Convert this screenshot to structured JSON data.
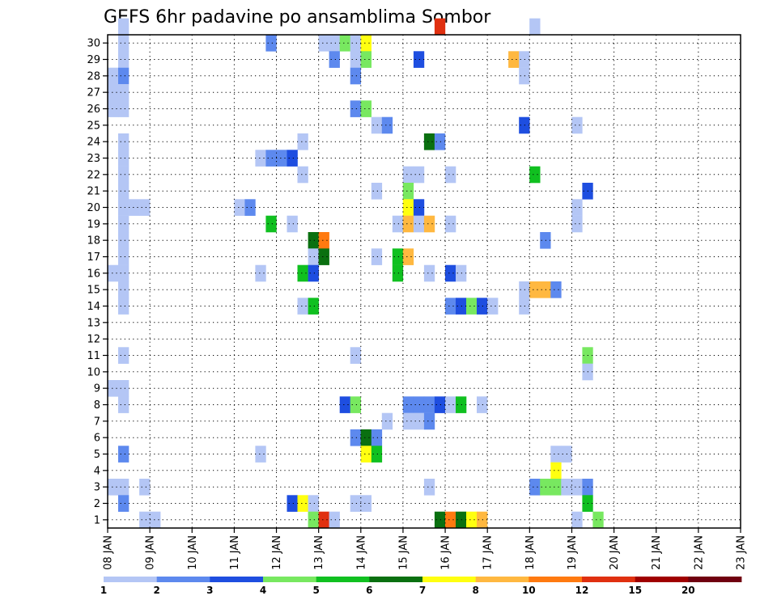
{
  "chart_data": {
    "type": "heatmap",
    "title": "GEFS 6hr padavine po ansamblima Sombor",
    "xlabel": "",
    "ylabel": "",
    "x_ticks": [
      "08 JAN",
      "09 JAN",
      "10 JAN",
      "11 JAN",
      "12 JAN",
      "13 JAN",
      "14 JAN",
      "15 JAN",
      "16 JAN",
      "17 JAN",
      "18 JAN",
      "19 JAN",
      "20 JAN",
      "21 JAN",
      "22 JAN",
      "23 JAN"
    ],
    "y_ticks": [
      "1",
      "2",
      "3",
      "4",
      "5",
      "6",
      "7",
      "8",
      "9",
      "10",
      "11",
      "12",
      "13",
      "14",
      "15",
      "16",
      "17",
      "18",
      "19",
      "20",
      "21",
      "22",
      "23",
      "24",
      "25",
      "26",
      "27",
      "28",
      "29",
      "30"
    ],
    "x_range": [
      0,
      60
    ],
    "y_range": [
      0,
      30
    ],
    "grid": true,
    "colorbar": {
      "labels": [
        "1",
        "2",
        "3",
        "4",
        "5",
        "6",
        "7",
        "8",
        "10",
        "12",
        "15",
        "20"
      ],
      "colors": [
        "#b4c6f5",
        "#5d89ee",
        "#1e4ee0",
        "#78e860",
        "#10c020",
        "#0a7010",
        "#ffff10",
        "#ffb840",
        "#ff7a10",
        "#e03010",
        "#a00000",
        "#700010"
      ]
    },
    "cells": [
      [
        1,
        30,
        1
      ],
      [
        31,
        30,
        10
      ],
      [
        40,
        30,
        1
      ],
      [
        1,
        29,
        1
      ],
      [
        15,
        29,
        2
      ],
      [
        20,
        29,
        1
      ],
      [
        21,
        29,
        1
      ],
      [
        22,
        29,
        4
      ],
      [
        23,
        29,
        1
      ],
      [
        24,
        29,
        7
      ],
      [
        1,
        28,
        1
      ],
      [
        21,
        28,
        2
      ],
      [
        23,
        28,
        1
      ],
      [
        24,
        28,
        4
      ],
      [
        29,
        28,
        3
      ],
      [
        38,
        28,
        8
      ],
      [
        39,
        28,
        1
      ],
      [
        0,
        27,
        1
      ],
      [
        1,
        27,
        2
      ],
      [
        23,
        27,
        2
      ],
      [
        39,
        27,
        1
      ],
      [
        0,
        26,
        1
      ],
      [
        1,
        26,
        1
      ],
      [
        0,
        25,
        1
      ],
      [
        1,
        25,
        1
      ],
      [
        23,
        25,
        2
      ],
      [
        24,
        25,
        4
      ],
      [
        25,
        24,
        1
      ],
      [
        26,
        24,
        2
      ],
      [
        39,
        24,
        3
      ],
      [
        44,
        24,
        1
      ],
      [
        1,
        23,
        1
      ],
      [
        18,
        23,
        1
      ],
      [
        30,
        23,
        6
      ],
      [
        31,
        23,
        2
      ],
      [
        1,
        22,
        1
      ],
      [
        14,
        22,
        1
      ],
      [
        15,
        22,
        2
      ],
      [
        16,
        22,
        2
      ],
      [
        17,
        22,
        3
      ],
      [
        1,
        21,
        1
      ],
      [
        18,
        21,
        1
      ],
      [
        28,
        21,
        1
      ],
      [
        29,
        21,
        1
      ],
      [
        32,
        21,
        1
      ],
      [
        40,
        21,
        5
      ],
      [
        1,
        20,
        1
      ],
      [
        25,
        20,
        1
      ],
      [
        28,
        20,
        4
      ],
      [
        45,
        20,
        3
      ],
      [
        1,
        19,
        1
      ],
      [
        2,
        19,
        1
      ],
      [
        3,
        19,
        1
      ],
      [
        12,
        19,
        1
      ],
      [
        13,
        19,
        2
      ],
      [
        28,
        19,
        7
      ],
      [
        29,
        19,
        3
      ],
      [
        44,
        19,
        1
      ],
      [
        1,
        18,
        1
      ],
      [
        15,
        18,
        5
      ],
      [
        17,
        18,
        1
      ],
      [
        27,
        18,
        1
      ],
      [
        28,
        18,
        8
      ],
      [
        29,
        18,
        1
      ],
      [
        30,
        18,
        8
      ],
      [
        32,
        18,
        1
      ],
      [
        44,
        18,
        1
      ],
      [
        1,
        17,
        1
      ],
      [
        19,
        17,
        6
      ],
      [
        20,
        17,
        9
      ],
      [
        41,
        17,
        2
      ],
      [
        1,
        16,
        1
      ],
      [
        19,
        16,
        1
      ],
      [
        20,
        16,
        6
      ],
      [
        25,
        16,
        1
      ],
      [
        27,
        16,
        5
      ],
      [
        28,
        16,
        8
      ],
      [
        0,
        15,
        1
      ],
      [
        1,
        15,
        1
      ],
      [
        14,
        15,
        1
      ],
      [
        18,
        15,
        5
      ],
      [
        19,
        15,
        3
      ],
      [
        27,
        15,
        5
      ],
      [
        30,
        15,
        1
      ],
      [
        32,
        15,
        3
      ],
      [
        33,
        15,
        1
      ],
      [
        1,
        14,
        1
      ],
      [
        39,
        14,
        1
      ],
      [
        40,
        14,
        8
      ],
      [
        41,
        14,
        8
      ],
      [
        42,
        14,
        2
      ],
      [
        1,
        13,
        1
      ],
      [
        18,
        13,
        1
      ],
      [
        19,
        13,
        5
      ],
      [
        32,
        13,
        2
      ],
      [
        33,
        13,
        3
      ],
      [
        34,
        13,
        4
      ],
      [
        35,
        13,
        3
      ],
      [
        36,
        13,
        1
      ],
      [
        39,
        13,
        1
      ],
      [
        1,
        10,
        1
      ],
      [
        23,
        10,
        1
      ],
      [
        45,
        10,
        4
      ],
      [
        45,
        9,
        1
      ],
      [
        0,
        8,
        1
      ],
      [
        1,
        8,
        1
      ],
      [
        1,
        7,
        1
      ],
      [
        22,
        7,
        3
      ],
      [
        23,
        7,
        4
      ],
      [
        28,
        7,
        2
      ],
      [
        29,
        7,
        2
      ],
      [
        30,
        7,
        2
      ],
      [
        31,
        7,
        3
      ],
      [
        32,
        7,
        1
      ],
      [
        33,
        7,
        5
      ],
      [
        35,
        7,
        1
      ],
      [
        26,
        6,
        1
      ],
      [
        28,
        6,
        1
      ],
      [
        29,
        6,
        1
      ],
      [
        30,
        6,
        2
      ],
      [
        23,
        5,
        2
      ],
      [
        24,
        5,
        6
      ],
      [
        25,
        5,
        2
      ],
      [
        1,
        4,
        2
      ],
      [
        14,
        4,
        1
      ],
      [
        24,
        4,
        7
      ],
      [
        25,
        4,
        5
      ],
      [
        42,
        4,
        1
      ],
      [
        43,
        4,
        1
      ],
      [
        42,
        3,
        7
      ],
      [
        0,
        2,
        1
      ],
      [
        1,
        2,
        1
      ],
      [
        3,
        2,
        1
      ],
      [
        30,
        2,
        1
      ],
      [
        40,
        2,
        2
      ],
      [
        41,
        2,
        4
      ],
      [
        42,
        2,
        4
      ],
      [
        43,
        2,
        1
      ],
      [
        44,
        2,
        1
      ],
      [
        45,
        2,
        2
      ],
      [
        1,
        1,
        2
      ],
      [
        17,
        1,
        3
      ],
      [
        18,
        1,
        7
      ],
      [
        19,
        1,
        1
      ],
      [
        23,
        1,
        1
      ],
      [
        24,
        1,
        1
      ],
      [
        45,
        1,
        5
      ],
      [
        3,
        0,
        1
      ],
      [
        4,
        0,
        1
      ],
      [
        19,
        0,
        4
      ],
      [
        20,
        0,
        10
      ],
      [
        21,
        0,
        1
      ],
      [
        31,
        0,
        6
      ],
      [
        32,
        0,
        9
      ],
      [
        33,
        0,
        6
      ],
      [
        34,
        0,
        7
      ],
      [
        35,
        0,
        8
      ],
      [
        44,
        0,
        1
      ],
      [
        46,
        0,
        4
      ]
    ]
  }
}
